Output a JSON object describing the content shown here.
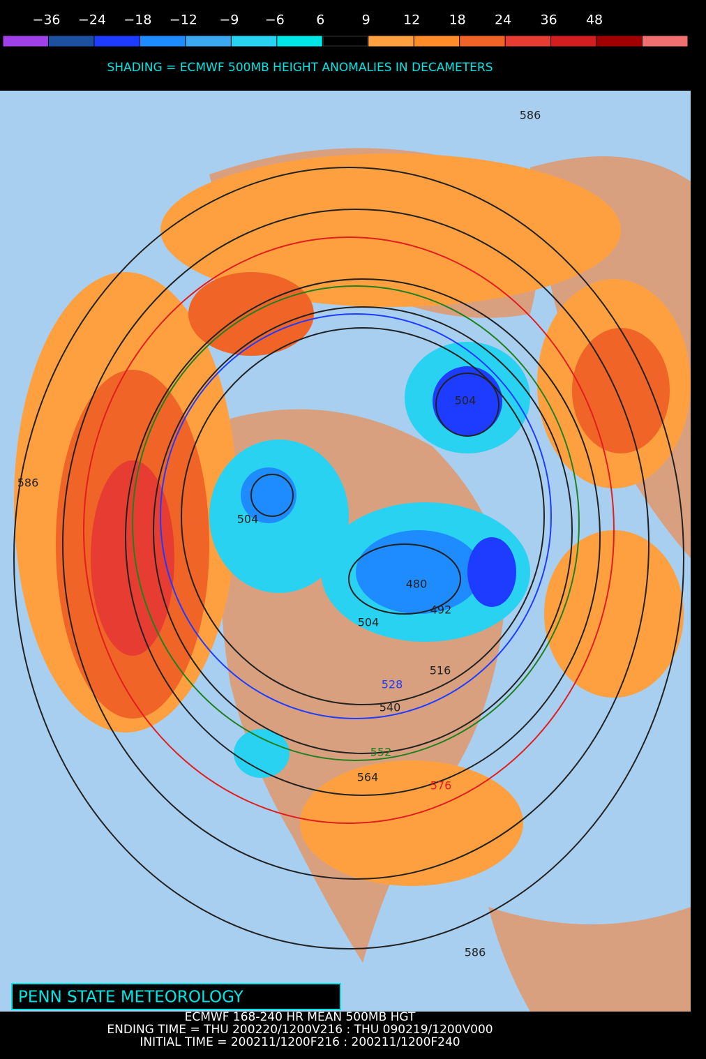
{
  "legend": {
    "labels": [
      "−36",
      "−24",
      "−18",
      "−12",
      "−9",
      "−6",
      "6",
      "9",
      "12",
      "18",
      "24",
      "36",
      "48"
    ],
    "colors": [
      "#a040e8",
      "#1e50a0",
      "#1e3cff",
      "#1e8cff",
      "#3ca8f0",
      "#28d2f0",
      "#00e6e6",
      "#000000",
      "#ffa040",
      "#ff8c28",
      "#f06428",
      "#e63c32",
      "#d21e1e",
      "#a00000",
      "#f07070"
    ]
  },
  "subtitle": "SHADING = ECMWF 500MB HEIGHT ANOMALIES IN DECAMETERS",
  "contour_labels": [
    "586",
    "586",
    "504",
    "504",
    "504",
    "480",
    "492",
    "516",
    "528",
    "540",
    "552",
    "564",
    "576",
    "586"
  ],
  "credit": "PENN STATE METEOROLOGY",
  "footer": [
    "ECMWF 168-240 HR MEAN 500MB HGT",
    "ENDING TIME = THU 200220/1200V216 : THU 090219/1200V000",
    "INITIAL TIME = 200211/1200F216 : 200211/1200F240"
  ]
}
